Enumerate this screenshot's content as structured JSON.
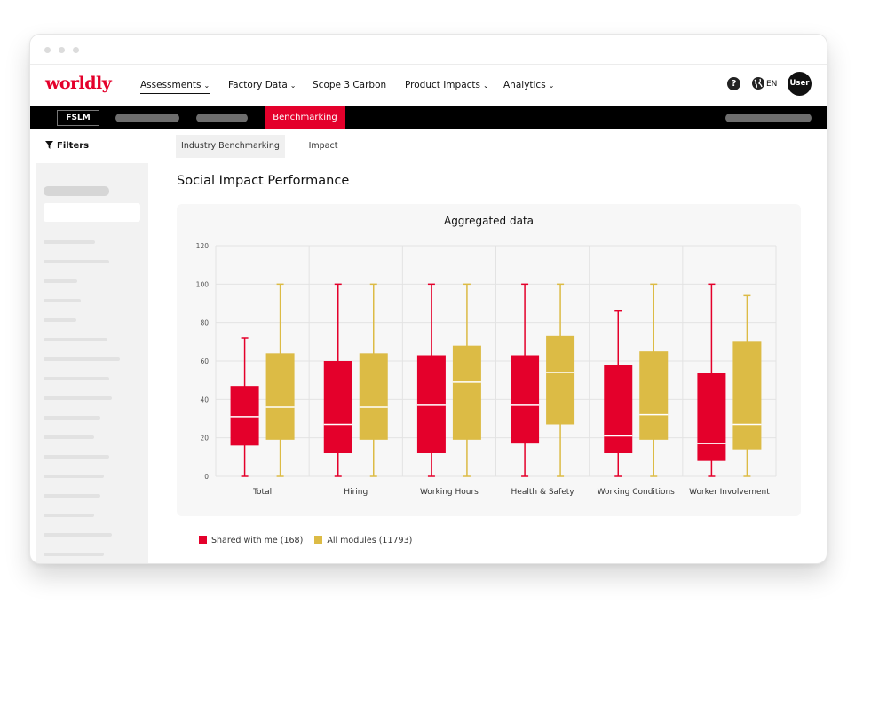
{
  "app": {
    "logo": "worldly"
  },
  "nav": {
    "items": [
      {
        "label": "Assessments",
        "chevron": "⌄"
      },
      {
        "label": "Factory Data",
        "chevron": "⌄"
      },
      {
        "label": "Scope 3 Carbon",
        "chevron": ""
      },
      {
        "label": "Product Impacts",
        "chevron": "⌄"
      },
      {
        "label": "Analytics",
        "chevron": "⌄"
      }
    ],
    "help_glyph": "?",
    "lang": "EN",
    "user": "User"
  },
  "subbar": {
    "module": "FSLM",
    "active_tab": "Benchmarking"
  },
  "sidebar": {
    "filters_label": "Filters",
    "filter_icon": "funnel-icon"
  },
  "page_tabs": [
    {
      "label": "Industry Benchmarking",
      "active": true
    },
    {
      "label": "Impact",
      "active": false
    }
  ],
  "page_title": "Social Impact Performance",
  "legend": {
    "items": [
      {
        "label": "Shared with me (168)",
        "color": "#e4002b"
      },
      {
        "label": "All modules (11793)",
        "color": "#dcbb45"
      }
    ]
  },
  "chart_data": {
    "type": "boxplot",
    "title": "Aggregated data",
    "categories": [
      "Total",
      "Hiring",
      "Working Hours",
      "Health & Safety",
      "Working Conditions",
      "Worker Involvement"
    ],
    "ylim": [
      0,
      120
    ],
    "yticks": [
      0,
      20,
      40,
      60,
      80,
      100,
      120
    ],
    "grid": true,
    "legend_position": "bottom-left",
    "series": [
      {
        "name": "Shared with me (168)",
        "color": "#e4002b",
        "boxes": [
          {
            "min": 0,
            "q1": 16,
            "median": 31,
            "q3": 47,
            "max": 72
          },
          {
            "min": 0,
            "q1": 12,
            "median": 27,
            "q3": 60,
            "max": 100
          },
          {
            "min": 0,
            "q1": 12,
            "median": 37,
            "q3": 63,
            "max": 100
          },
          {
            "min": 0,
            "q1": 17,
            "median": 37,
            "q3": 63,
            "max": 100
          },
          {
            "min": 0,
            "q1": 12,
            "median": 21,
            "q3": 58,
            "max": 86
          },
          {
            "min": 0,
            "q1": 8,
            "median": 17,
            "q3": 54,
            "max": 100
          }
        ]
      },
      {
        "name": "All modules (11793)",
        "color": "#dcbb45",
        "boxes": [
          {
            "min": 0,
            "q1": 19,
            "median": 36,
            "q3": 64,
            "max": 100
          },
          {
            "min": 0,
            "q1": 19,
            "median": 36,
            "q3": 64,
            "max": 100
          },
          {
            "min": 0,
            "q1": 19,
            "median": 49,
            "q3": 68,
            "max": 100
          },
          {
            "min": 0,
            "q1": 27,
            "median": 54,
            "q3": 73,
            "max": 100
          },
          {
            "min": 0,
            "q1": 19,
            "median": 32,
            "q3": 65,
            "max": 100
          },
          {
            "min": 0,
            "q1": 14,
            "median": 27,
            "q3": 70,
            "max": 94
          }
        ]
      }
    ]
  }
}
